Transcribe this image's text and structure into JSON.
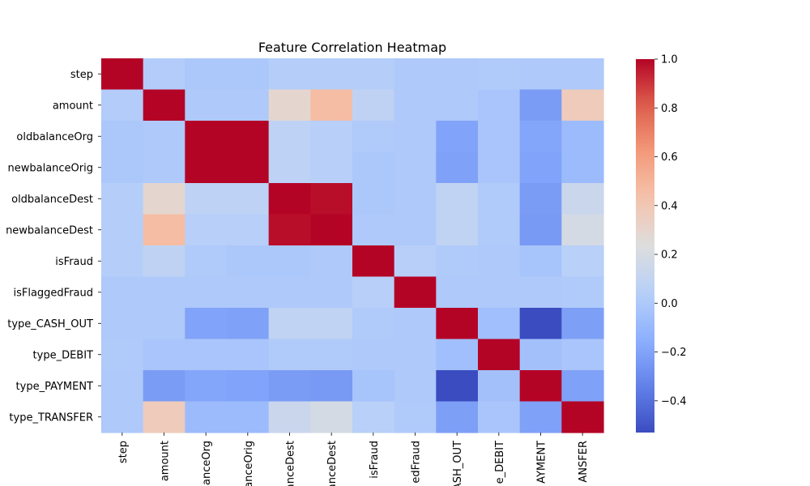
{
  "chart_data": {
    "type": "heatmap",
    "title": "Feature Correlation Heatmap",
    "x_tick_labels": [
      "step",
      "amount",
      "alanceOrg",
      "anceOrig",
      "anceDest",
      "anceDest",
      "isFraud",
      "edFraud",
      "ASH_OUT",
      "e_DEBIT",
      "AYMENT",
      "ANSFER"
    ],
    "y_tick_labels": [
      "step",
      "amount",
      "oldbalanceOrg",
      "newbalanceOrig",
      "oldbalanceDest",
      "newbalanceDest",
      "isFraud",
      "isFlaggedFraud",
      "type_CASH_OUT",
      "type_DEBIT",
      "type_PAYMENT",
      "type_TRANSFER"
    ],
    "colormap": "coolwarm",
    "vmin": -0.53,
    "vmax": 1.0,
    "colorbar_ticks": [
      {
        "value": 1.0,
        "label": "1.0"
      },
      {
        "value": 0.8,
        "label": "0.8"
      },
      {
        "value": 0.6,
        "label": "0.6"
      },
      {
        "value": 0.4,
        "label": "0.4"
      },
      {
        "value": 0.2,
        "label": "0.2"
      },
      {
        "value": 0.0,
        "label": "0.0"
      },
      {
        "value": -0.2,
        "label": "−0.2"
      },
      {
        "value": -0.4,
        "label": "−0.4"
      }
    ],
    "matrix": [
      [
        1.0,
        0.02,
        -0.01,
        -0.01,
        0.03,
        0.03,
        0.03,
        0.0,
        0.0,
        0.01,
        0.0,
        0.0
      ],
      [
        0.02,
        1.0,
        -0.0,
        -0.0,
        0.29,
        0.46,
        0.08,
        0.0,
        0.0,
        -0.02,
        -0.23,
        0.37
      ],
      [
        -0.01,
        -0.0,
        1.0,
        1.0,
        0.07,
        0.04,
        0.01,
        0.0,
        -0.2,
        -0.02,
        -0.19,
        -0.08
      ],
      [
        -0.01,
        -0.0,
        1.0,
        1.0,
        0.07,
        0.04,
        -0.01,
        0.0,
        -0.21,
        -0.02,
        -0.2,
        -0.08
      ],
      [
        0.03,
        0.29,
        0.07,
        0.07,
        1.0,
        0.98,
        -0.01,
        -0.0,
        0.09,
        0.01,
        -0.23,
        0.13
      ],
      [
        0.03,
        0.46,
        0.04,
        0.04,
        0.98,
        1.0,
        0.0,
        -0.0,
        0.09,
        0.01,
        -0.24,
        0.19
      ],
      [
        0.03,
        0.08,
        0.01,
        -0.01,
        -0.01,
        0.0,
        1.0,
        0.04,
        0.01,
        -0.0,
        -0.03,
        0.05
      ],
      [
        0.0,
        0.0,
        0.0,
        0.0,
        -0.0,
        -0.0,
        0.04,
        1.0,
        -0.0,
        -0.0,
        -0.0,
        0.01
      ],
      [
        0.0,
        0.0,
        -0.2,
        -0.21,
        0.09,
        0.09,
        0.01,
        -0.0,
        1.0,
        -0.06,
        -0.53,
        -0.22
      ],
      [
        0.01,
        -0.02,
        -0.02,
        -0.02,
        0.01,
        0.01,
        -0.0,
        -0.0,
        -0.06,
        1.0,
        -0.05,
        -0.02
      ],
      [
        0.0,
        -0.23,
        -0.19,
        -0.2,
        -0.23,
        -0.24,
        -0.03,
        -0.0,
        -0.53,
        -0.05,
        1.0,
        -0.21
      ],
      [
        0.0,
        0.37,
        -0.08,
        -0.08,
        0.13,
        0.19,
        0.05,
        0.01,
        -0.22,
        -0.02,
        -0.21,
        1.0
      ]
    ]
  }
}
